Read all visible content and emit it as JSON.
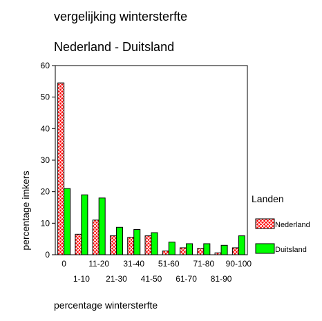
{
  "chart_data": {
    "type": "bar",
    "title": "vergelijking wintersterfte",
    "subtitle": "Nederland - Duitsland",
    "xlabel": "percentage wintersterfte",
    "ylabel": "percentage imkers",
    "ylim": [
      0,
      60
    ],
    "yticks": [
      0,
      10,
      20,
      30,
      40,
      50,
      60
    ],
    "categories": [
      "0",
      "1-10",
      "11-20",
      "21-30",
      "31-40",
      "41-50",
      "51-60",
      "61-70",
      "71-80",
      "81-90",
      "90-100"
    ],
    "legend_title": "Landen",
    "legend_position": "right",
    "series": [
      {
        "name": "Nederland",
        "color": "#ff0000",
        "pattern": "crosshatch",
        "values": [
          54.5,
          6.5,
          11,
          6,
          5.5,
          6,
          1.2,
          2.2,
          2,
          0.6,
          2.2
        ]
      },
      {
        "name": "Duitsland",
        "color": "#00ff00",
        "values": [
          21,
          19,
          18,
          8.7,
          8,
          7,
          4,
          3.5,
          3.5,
          3,
          6
        ]
      }
    ]
  }
}
